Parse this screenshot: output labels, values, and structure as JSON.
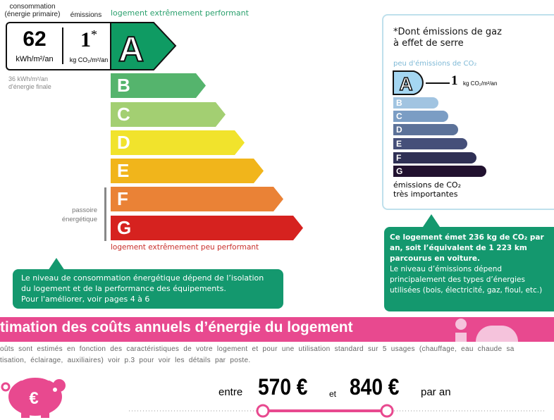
{
  "energy": {
    "header_consumption": "consommation\n(énergie primaire)",
    "header_emissions": "émissions",
    "top_label": "logement extrêmement performant",
    "bottom_label": "logement extrêmement peu performant",
    "consumption_value": "62",
    "consumption_unit": "kWh/m²/an",
    "emission_value": "1",
    "emission_star": "*",
    "emission_unit": "kg CO₂/m²/an",
    "final_energy": "36 kWh/m²/an\nd'énergie finale",
    "passoire": "passoire\nénergétique",
    "rating": "A",
    "classes": [
      {
        "letter": "A",
        "color": "#0f9b63"
      },
      {
        "letter": "B",
        "color": "#55b46d"
      },
      {
        "letter": "C",
        "color": "#a3cf72"
      },
      {
        "letter": "D",
        "color": "#f1e32c"
      },
      {
        "letter": "E",
        "color": "#f1b51b"
      },
      {
        "letter": "F",
        "color": "#ea8236"
      },
      {
        "letter": "G",
        "color": "#d6221f"
      }
    ]
  },
  "left_callout": "Le niveau de consommation énergétique dépend de l’isolation du logement et de la performance des équipements.\nPour l'améliorer, voir pages 4 à 6",
  "ges": {
    "title": "*Dont émissions de gaz\nà effet de serre",
    "top_label": "peu d'émissions de CO₂",
    "bottom_label": "émissions de CO₂\ntrès importantes",
    "value": "1",
    "unit": "kg CO₂/m²/an",
    "rating": "A",
    "classes": [
      {
        "letter": "A",
        "color": "#a4d6f1"
      },
      {
        "letter": "B",
        "color": "#a1c4e1"
      },
      {
        "letter": "C",
        "color": "#7b9dc4"
      },
      {
        "letter": "D",
        "color": "#5c7299"
      },
      {
        "letter": "E",
        "color": "#454f79"
      },
      {
        "letter": "F",
        "color": "#2f3055"
      },
      {
        "letter": "G",
        "color": "#21112f"
      }
    ]
  },
  "right_callout": {
    "bold": "Ce logement émet 236 kg de CO₂ par an, soit l’équivalent de 1 223 km parcourus en voiture.",
    "text": "Le niveau d’émissions dépend principalement des types d’énergies utilisées (bois, électricité, gaz, fioul, etc.)"
  },
  "costs": {
    "title": "timation des coûts annuels d’énergie du logement",
    "description": "oûts sont estimés en fonction des caractéristiques de votre logement et pour une utilisation standard sur 5 usages (chauffage, eau chaude sa\ntisation, éclairage, auxiliaires) voir p.3 pour voir les détails par poste.",
    "between": "entre",
    "min": "570 €",
    "and": "et",
    "max": "840 €",
    "per_year": "par an",
    "accent": "#e8498f"
  }
}
